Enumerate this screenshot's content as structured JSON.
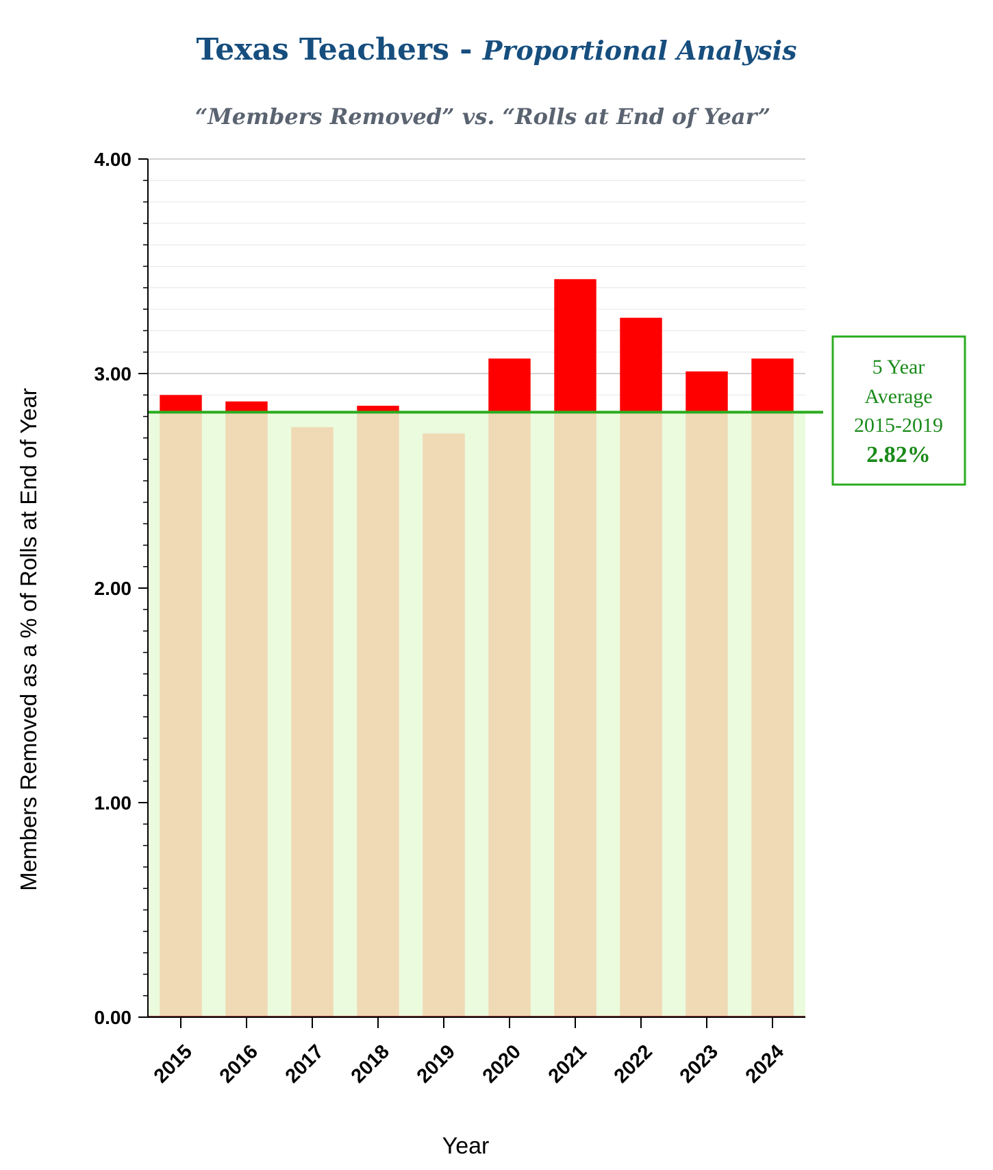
{
  "title": {
    "main": "Texas Teachers - ",
    "emphasis": "Proportional Analysis",
    "subtitle": "“Members Removed” vs. “Rolls at End of Year”"
  },
  "chart_data": {
    "type": "bar",
    "categories": [
      "2015",
      "2016",
      "2017",
      "2018",
      "2019",
      "2020",
      "2021",
      "2022",
      "2023",
      "2024"
    ],
    "values": [
      2.9,
      2.87,
      2.75,
      2.85,
      2.72,
      3.07,
      3.44,
      3.26,
      3.01,
      3.07
    ],
    "xlabel": "Year",
    "ylabel": "Members Removed as a % of Rolls at End of Year",
    "ylim": [
      0,
      4
    ],
    "y_ticks": [
      "0.00",
      "1.00",
      "2.00",
      "3.00",
      "4.00"
    ],
    "grid": true,
    "reference_line": {
      "value": 2.82,
      "label_lines": [
        "5 Year",
        "Average",
        "2015-2019"
      ],
      "value_label": "2.82%"
    },
    "colors": {
      "above_average": "#ff0000",
      "below_average": "#f0d9b5",
      "average_band": "#ebfbdd",
      "average_line": "#2aac1e",
      "title": "#164e7e"
    }
  }
}
